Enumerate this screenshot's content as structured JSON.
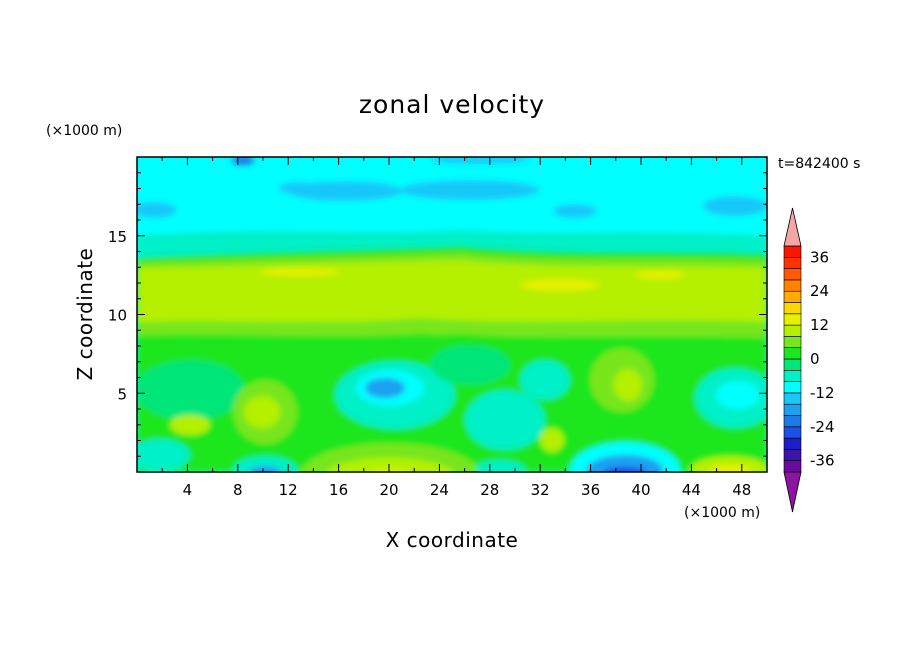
{
  "chart_data": {
    "type": "heatmap",
    "title": "zonal velocity",
    "xlabel": "X coordinate",
    "ylabel": "Z coordinate",
    "x_unit": "(×1000 m)",
    "y_unit": "(×1000 m)",
    "time_label": "t=842400 s",
    "xlim": [
      0,
      50
    ],
    "ylim": [
      0,
      20
    ],
    "x_ticks": [
      4,
      8,
      12,
      16,
      20,
      24,
      28,
      32,
      36,
      40,
      44,
      48
    ],
    "y_ticks": [
      5,
      10,
      15
    ],
    "colorbar": {
      "levels": [
        -40,
        -36,
        -32,
        -28,
        -24,
        -20,
        -16,
        -12,
        -8,
        -4,
        0,
        4,
        8,
        12,
        16,
        20,
        24,
        28,
        32,
        36,
        40
      ],
      "tick_labels": [
        36,
        24,
        12,
        0,
        -12,
        -24,
        -36
      ],
      "colors": [
        "#6a0aa0",
        "#3c14a6",
        "#1e1ec8",
        "#1e50e6",
        "#1e7ae6",
        "#1ea0f0",
        "#19c8f8",
        "#00ffff",
        "#00f0c8",
        "#00e678",
        "#1ee61e",
        "#78e61e",
        "#b4f000",
        "#e6f000",
        "#ffd700",
        "#ffaa00",
        "#ff8200",
        "#ff5a00",
        "#ff3200",
        "#ff1400"
      ],
      "extend_low_color": "#8c14a0",
      "extend_high_color": "#f4a6a6"
    }
  }
}
